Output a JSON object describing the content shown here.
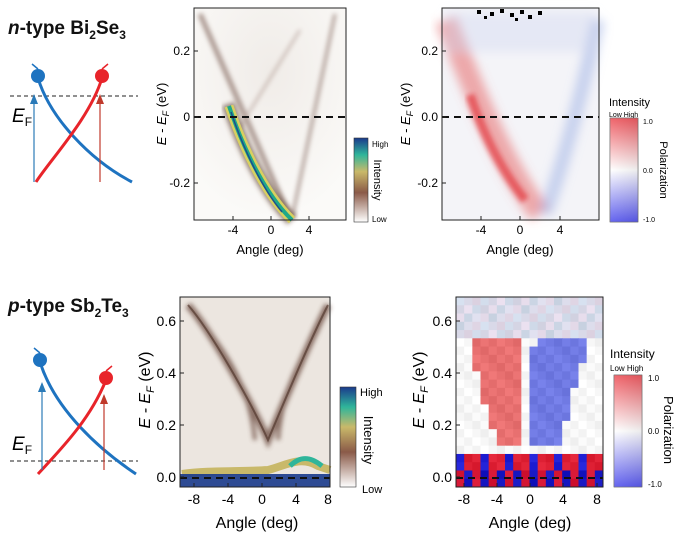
{
  "top": {
    "title_prefix": "n",
    "title_rest": "-type Bi",
    "title_sub1": "2",
    "title_mid": "Se",
    "title_sub2": "3",
    "ef_label": "E",
    "ef_sub": "F"
  },
  "bottom": {
    "title_prefix": "p",
    "title_rest": "-type Sb",
    "title_sub1": "2",
    "title_mid": "Te",
    "title_sub2": "3",
    "ef_label": "E",
    "ef_sub": "F"
  },
  "axes": {
    "xlabel": "Angle (deg)",
    "ylabel_prefix": "E - E",
    "ylabel_sub": "F",
    "ylabel_suffix": " (eV)"
  },
  "intensity_bar": {
    "high": "High",
    "low": "Low",
    "title": "Intensity"
  },
  "polar_bar": {
    "title": "Intensity",
    "subtitle": "Low High",
    "label": "Polarization",
    "ticks": [
      "1.0",
      "0.0",
      "-1.0"
    ]
  },
  "colors": {
    "spin_up": "#e8242a",
    "spin_down": "#1e73c0",
    "arrow_red": "#c0392b",
    "arrow_blue": "#2a7ab8"
  },
  "chart_data": [
    {
      "type": "heatmap",
      "title": "",
      "xlabel": "Angle (deg)",
      "ylabel": "E - EF (eV)",
      "xlim": [
        -8,
        8
      ],
      "ylim": [
        -0.3,
        0.35
      ],
      "xticks": [
        "-4",
        "0",
        "4"
      ],
      "yticks": [
        "0.2",
        "0",
        "-0.2"
      ]
    },
    {
      "type": "heatmap",
      "title": "",
      "xlabel": "Angle (deg)",
      "ylabel": "E - EF (eV)",
      "xlim": [
        -8,
        8
      ],
      "ylim": [
        -0.3,
        0.35
      ],
      "xticks": [
        "-4",
        "0",
        "4"
      ],
      "yticks": [
        "0.2",
        "0.0",
        "-0.2"
      ]
    },
    {
      "type": "heatmap",
      "title": "",
      "xlabel": "Angle (deg)",
      "ylabel": "E - EF (eV)",
      "xlim": [
        -9,
        9
      ],
      "ylim": [
        -0.05,
        0.7
      ],
      "xticks": [
        "-8",
        "-4",
        "0",
        "4",
        "8"
      ],
      "yticks": [
        "0.6",
        "0.4",
        "0.2",
        "0.0"
      ]
    },
    {
      "type": "heatmap",
      "title": "",
      "xlabel": "Angle (deg)",
      "ylabel": "E - EF (eV)",
      "xlim": [
        -9,
        9
      ],
      "ylim": [
        -0.05,
        0.7
      ],
      "xticks": [
        "-8",
        "-4",
        "0",
        "4",
        "8"
      ],
      "yticks": [
        "0.6",
        "0.4",
        "0.2",
        "0.0"
      ]
    }
  ]
}
